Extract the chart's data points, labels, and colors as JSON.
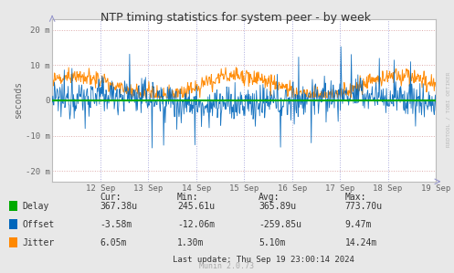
{
  "title": "NTP timing statistics for system peer - by week",
  "ylabel": "seconds",
  "background_color": "#e8e8e8",
  "plot_background": "#ffffff",
  "grid_color_h": "#ddaaaa",
  "grid_color_v": "#aaaadd",
  "x_tick_labels": [
    "12 Sep",
    "13 Sep",
    "14 Sep",
    "15 Sep",
    "16 Sep",
    "17 Sep",
    "18 Sep",
    "19 Sep"
  ],
  "y_ticks": [
    -20,
    -10,
    0,
    10,
    20
  ],
  "y_tick_labels": [
    "-20 m",
    "-10 m",
    "0",
    "10 m",
    "20 m"
  ],
  "ylim": [
    -23,
    23
  ],
  "delay_color": "#00aa00",
  "offset_color": "#0066bb",
  "jitter_color": "#ff8800",
  "legend_items": [
    "Delay",
    "Offset",
    "Jitter"
  ],
  "stats_header": [
    "Cur:",
    "Min:",
    "Avg:",
    "Max:"
  ],
  "stats_delay": [
    "367.38u",
    "245.61u",
    "365.89u",
    "773.70u"
  ],
  "stats_offset": [
    "-3.58m",
    "-12.06m",
    "-259.85u",
    "9.47m"
  ],
  "stats_jitter": [
    "6.05m",
    "1.30m",
    "5.10m",
    "14.24m"
  ],
  "last_update": "Last update: Thu Sep 19 23:00:14 2024",
  "munin_version": "Munin 2.0.73",
  "watermark": "RRDTOOL / TOBI OETIKER",
  "n_points": 700
}
